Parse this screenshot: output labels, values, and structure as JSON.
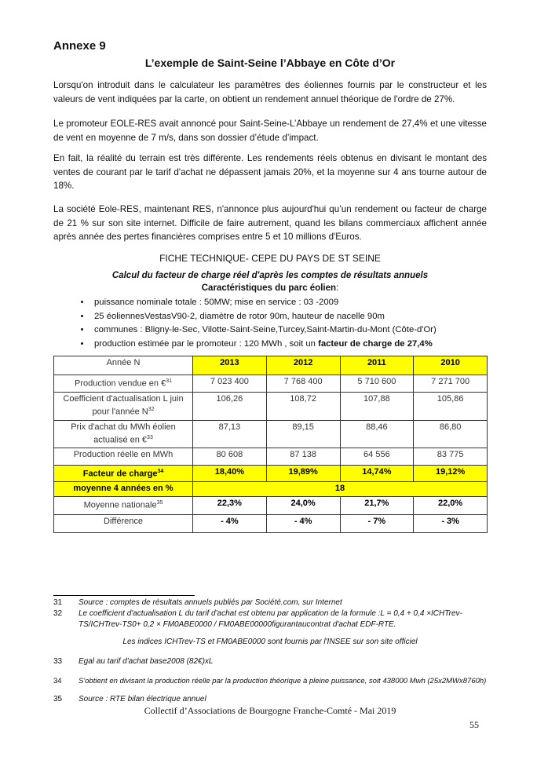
{
  "annexe": "Annexe 9",
  "title": "L’exemple de Saint-Seine l’Abbaye en Côte d’Or",
  "paragraphs": [
    "Lorsqu'on introduit dans le calculateur les paramètres des éoliennes fournis par le constructeur et les valeurs de vent indiquées par la carte, on obtient un rendement annuel théorique de l'ordre de 27%.",
    "Le promoteur EOLE-RES avait annoncé pour Saint-Seine-L’Abbaye un rendement de 27,4% et une vitesse de vent en moyenne de 7 m/s, dans son dossier d’étude d’impact.",
    "En fait, la réalité du terrain est très différente. Les rendements réels obtenus en divisant le montant des ventes de courant par le tarif d'achat ne dépassent jamais 20%, et la moyenne sur 4 ans tourne autour de 18%.",
    "La société Eole-RES, maintenant RES, n'annonce plus aujourd'hui qu’un rendement ou facteur de charge de 21 % sur son site internet. Difficile de faire autrement, quand les bilans commerciaux affichent année après année des pertes financières comprises entre 5 et 10 millions d'Euros."
  ],
  "fiche": "FICHE TECHNIQUE- CEPE DU PAYS DE ST SEINE",
  "calc": "Calcul du facteur de charge réel d'après les comptes de résultats annuels",
  "carac": "Caractéristiques du parc éolien",
  "carac_colon": ":",
  "bullets": [
    "puissance nominale totale : 50MW; mise en service : 03 -2009",
    "25 éoliennesVestasV90-2, diamètre de rotor 90m, hauteur de nacelle 90m",
    "communes : Bligny-le-Sec, Vilotte-Saint-Seine,Turcey,Saint-Martin-du-Mont (Côte-d'Or)"
  ],
  "bullet4": {
    "text": "production estimée par le promoteur : 120 MWh , soit un ",
    "bold": "facteur de charge de 27,4%"
  },
  "table": {
    "header": {
      "label": "Année N",
      "years": [
        "2013",
        "2012",
        "2011",
        "2010"
      ]
    },
    "rows": [
      {
        "label": "Production vendue en €",
        "sup": "31",
        "values": [
          "7 023 400",
          "7 768 400",
          "5 710 600",
          "7 271 700"
        ]
      },
      {
        "label": "Coefficient d'actualisation L juin pour l'année N",
        "sup": "32",
        "values": [
          "106,26",
          "108,72",
          "107,88",
          "105,86"
        ]
      },
      {
        "label": "Prix d'achat du MWh éolien actualisé en €",
        "sup": "33",
        "values": [
          "87,13",
          "89,15",
          "88,46",
          "86,80"
        ]
      },
      {
        "label": "Production réelle en MWh",
        "values": [
          "80 608",
          "87 138",
          "64 556",
          "83 775"
        ]
      },
      {
        "label": "Facteur de charge",
        "sup": "34",
        "values": [
          "18,40%",
          "19,89%",
          "14,74%",
          "19,12%"
        ]
      }
    ],
    "moyenne": {
      "label": "moyenne 4 années en %",
      "value": "18"
    },
    "nationale": {
      "label": "Moyenne nationale",
      "sup": "35",
      "values": [
        "22,3%",
        "24,0%",
        "21,7%",
        "22,0%"
      ]
    },
    "difference": {
      "label": "Différence",
      "values": [
        "- 4%",
        "- 4%",
        "- 7%",
        "- 3%"
      ]
    }
  },
  "footnotes": [
    {
      "num": "31",
      "text": "Source : comptes de résultats annuels publiés par Société.com, sur Internet"
    },
    {
      "num": "32",
      "text": "Le coefficient d'actualisation L du tarif d'achat est obtenu par application de la formule :L = 0,4 + 0,4 ×ICHTrev-TS/ICHTrev-TS0+ 0,2 × FM0ABE0000 / FM0ABE00000figurantaucontrat d'achat EDF-RTE."
    },
    {
      "num": "",
      "text": "Les indices ICHTrev-TS et FM0ABE0000 sont fournis par l'INSEE sur son site officiel"
    },
    {
      "num": "33",
      "text": "Egal au tarif d'achat base2008 (82€)xL"
    },
    {
      "num": "34",
      "text": "S'obtient en divisant la production réelle par la production théorique à pleine puissance, soit 438000 Mwh (25x2MWx8760h)"
    },
    {
      "num": "35",
      "text": "Source : RTE bilan électrique annuel"
    }
  ],
  "footer": "Collectif d’Associations de Bourgogne Franche-Comté  - Mai 2019",
  "page_number": "55",
  "highlight_color": "#ffff00"
}
